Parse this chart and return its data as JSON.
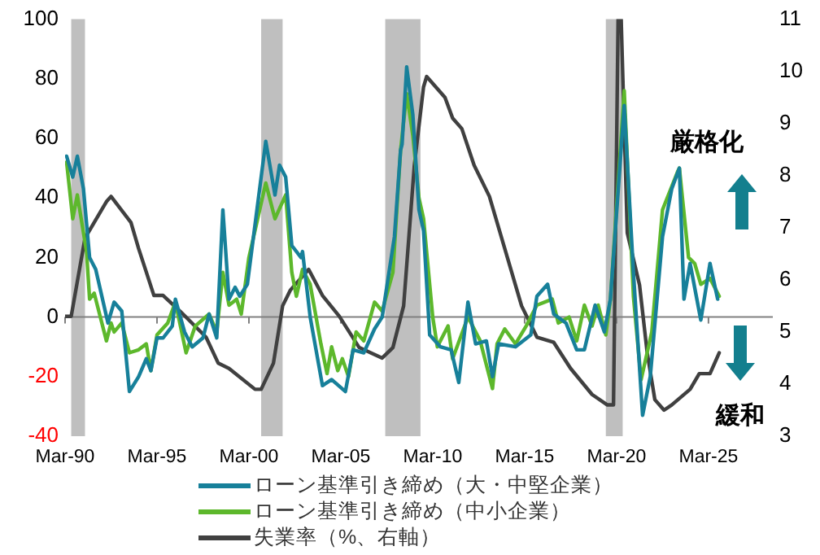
{
  "chart_data": {
    "type": "line",
    "xlim": [
      "1990-03",
      "2028-09"
    ],
    "xticks": [
      {
        "value": "1990-03",
        "label": "Mar-90"
      },
      {
        "value": "1995-03",
        "label": "Mar-95"
      },
      {
        "value": "2000-03",
        "label": "Mar-00"
      },
      {
        "value": "2005-03",
        "label": "Mar-05"
      },
      {
        "value": "2010-03",
        "label": "Mar-10"
      },
      {
        "value": "2015-03",
        "label": "Mar-15"
      },
      {
        "value": "2020-03",
        "label": "Mar-20"
      },
      {
        "value": "2025-03",
        "label": "Mar-25"
      }
    ],
    "ylim": [
      -40,
      100
    ],
    "yticks": [
      -40,
      -20,
      0,
      20,
      40,
      60,
      80,
      100
    ],
    "y2lim": [
      3,
      11
    ],
    "y2ticks": [
      3,
      4,
      5,
      6,
      7,
      8,
      9,
      10,
      11
    ],
    "grid": false,
    "legend": "bottom",
    "marker": "none",
    "line_style": "solid",
    "annotations": [
      "厳格化",
      "緩和"
    ],
    "ref_lines": [
      {
        "axis": "y",
        "value": 0,
        "color": "#808080"
      }
    ],
    "bands": [
      {
        "axis": "x",
        "from": "1990-07",
        "to": "1991-04",
        "color": "#bfbfbf"
      },
      {
        "axis": "x",
        "from": "2000-11",
        "to": "2002-01",
        "color": "#bfbfbf"
      },
      {
        "axis": "x",
        "from": "2007-08",
        "to": "2009-07",
        "color": "#bfbfbf"
      },
      {
        "axis": "x",
        "from": "2019-08",
        "to": "2020-07",
        "color": "#bfbfbf"
      }
    ],
    "series": [
      {
        "name": "ローン基準引き締め（大・中堅企業）",
        "color": "#17809a",
        "x": [
          "1990-04",
          "1990-08",
          "1990-11",
          "1991-03",
          "1991-07",
          "1991-11",
          "1992-07",
          "1992-11",
          "1993-04",
          "1993-09",
          "1994-03",
          "1994-08",
          "1994-11",
          "1995-03",
          "1995-07",
          "1996-01",
          "1996-03",
          "1996-09",
          "1997-02",
          "1997-09",
          "1998-01",
          "1998-06",
          "1998-10",
          "1999-02",
          "1999-06",
          "1999-09",
          "2000-02",
          "2000-06",
          "2001-02",
          "2001-08",
          "2001-11",
          "2002-03",
          "2002-07",
          "2003-01",
          "2003-02",
          "2003-07",
          "2004-03",
          "2004-09",
          "2005-06",
          "2005-11",
          "2006-06",
          "2007-01",
          "2007-06",
          "2008-02",
          "2008-06",
          "2008-07",
          "2008-10",
          "2009-02",
          "2009-06",
          "2009-09",
          "2010-01",
          "2010-08",
          "2011-03",
          "2011-08",
          "2012-02",
          "2012-07",
          "2013-02",
          "2013-06",
          "2013-10",
          "2014-09",
          "2015-07",
          "2015-11",
          "2016-06",
          "2016-10",
          "2017-06",
          "2018-01",
          "2018-06",
          "2019-01",
          "2019-07",
          "2019-11",
          "2020-08",
          "2021-02",
          "2021-08",
          "2022-01",
          "2022-09",
          "2023-03",
          "2023-08",
          "2023-11",
          "2024-03",
          "2024-10",
          "2025-04",
          "2025-09"
        ],
        "values": [
          54,
          47,
          54,
          43,
          20,
          16,
          -2,
          5,
          2,
          -25,
          -20,
          -14,
          -18,
          -7,
          -7,
          -3,
          6,
          -5,
          -10,
          -7,
          1,
          -7,
          36,
          6,
          10,
          7,
          11,
          27,
          59,
          41,
          51,
          47,
          24,
          20,
          22,
          0,
          -23,
          -21,
          -25,
          -11,
          -12,
          -4,
          0,
          27,
          56,
          58,
          84,
          68,
          36,
          29,
          -6,
          -10,
          -11,
          -22,
          5,
          -9,
          -8,
          -20,
          -9,
          -10,
          -6,
          7,
          11,
          1,
          -2,
          -11,
          -11,
          4,
          -5,
          6,
          71,
          15,
          -33,
          -20,
          27,
          43,
          50,
          6,
          18,
          -1,
          18,
          6
        ]
      },
      {
        "name": "ローン基準引き締め（中小企業）",
        "color": "#5db82c",
        "x": [
          "1990-04",
          "1990-08",
          "1990-11",
          "1991-05",
          "1991-07",
          "1991-10",
          "1992-06",
          "1992-09",
          "1992-11",
          "1993-04",
          "1993-09",
          "1994-03",
          "1994-08",
          "1994-11",
          "1995-03",
          "1995-10",
          "1996-03",
          "1996-10",
          "1997-04",
          "1998-01",
          "1998-06",
          "1998-10",
          "1999-02",
          "1999-07",
          "1999-10",
          "2000-03",
          "2001-02",
          "2001-08",
          "2002-03",
          "2002-07",
          "2002-10",
          "2003-02",
          "2003-07",
          "2004-02",
          "2004-06",
          "2004-09",
          "2005-01",
          "2005-04",
          "2005-08",
          "2006-01",
          "2006-06",
          "2007-01",
          "2007-06",
          "2008-01",
          "2008-06",
          "2008-10",
          "2009-02",
          "2009-06",
          "2009-09",
          "2010-03",
          "2010-06",
          "2011-01",
          "2011-04",
          "2012-02",
          "2012-10",
          "2013-06",
          "2013-09",
          "2014-02",
          "2014-09",
          "2015-04",
          "2015-11",
          "2016-09",
          "2017-01",
          "2017-08",
          "2018-01",
          "2018-06",
          "2018-11",
          "2019-03",
          "2019-08",
          "2019-11",
          "2020-08",
          "2021-02",
          "2021-07",
          "2022-02",
          "2022-09",
          "2023-07",
          "2023-08",
          "2024-02",
          "2024-06",
          "2024-10",
          "2025-04",
          "2025-10"
        ],
        "values": [
          52,
          33,
          41,
          22,
          6,
          8,
          -8,
          -2,
          -5,
          -2,
          -12,
          -11,
          -9,
          -18,
          -6,
          -2,
          5,
          -12,
          -3,
          1,
          -5,
          15,
          4,
          6,
          1,
          20,
          45,
          33,
          41,
          15,
          7,
          16,
          11,
          -9,
          -19,
          -10,
          -18,
          -14,
          -20,
          -5,
          -8,
          5,
          2,
          15,
          56,
          75,
          61,
          40,
          33,
          0,
          -10,
          -3,
          -14,
          0,
          -8,
          -24,
          -9,
          -4,
          -9,
          -3,
          4,
          6,
          -2,
          0,
          -8,
          4,
          -3,
          4,
          -6,
          6,
          76,
          7,
          -21,
          -5,
          36,
          49,
          50,
          20,
          18,
          11,
          13,
          7
        ]
      },
      {
        "name": "失業率（%、右軸）",
        "color": "#404040",
        "axis": "y2",
        "x": [
          "1990-03",
          "1990-07",
          "1991-04",
          "1992-06",
          "1992-09",
          "1993-10",
          "1994-03",
          "1995-01",
          "1995-07",
          "1996-06",
          "1997-11",
          "1998-07",
          "1999-02",
          "2000-07",
          "2000-11",
          "2001-07",
          "2002-01",
          "2002-06",
          "2003-06",
          "2004-03",
          "2005-02",
          "2006-03",
          "2007-06",
          "2008-01",
          "2008-08",
          "2009-03",
          "2009-09",
          "2009-11",
          "2010-11",
          "2011-04",
          "2011-10",
          "2012-06",
          "2013-04",
          "2014-02",
          "2015-01",
          "2015-11",
          "2016-10",
          "2017-09",
          "2018-11",
          "2019-09",
          "2020-01",
          "2020-04",
          "2020-06",
          "2020-10",
          "2021-06",
          "2021-11",
          "2022-04",
          "2022-10",
          "2023-03",
          "2024-03",
          "2024-09",
          "2025-04",
          "2025-10"
        ],
        "values": [
          5.3,
          5.3,
          6.8,
          7.5,
          7.6,
          7.1,
          6.6,
          5.7,
          5.7,
          5.4,
          4.9,
          4.4,
          4.3,
          3.9,
          3.9,
          4.4,
          5.5,
          5.8,
          6.2,
          5.7,
          5.3,
          4.7,
          4.5,
          4.7,
          5.5,
          8.2,
          9.7,
          9.9,
          9.5,
          9.1,
          8.9,
          8.2,
          7.6,
          6.6,
          5.5,
          4.9,
          4.8,
          4.3,
          3.8,
          3.6,
          3.6,
          11,
          11,
          6.9,
          5.9,
          4.6,
          3.7,
          3.5,
          3.6,
          3.9,
          4.2,
          4.2,
          4.6
        ]
      }
    ]
  }
}
